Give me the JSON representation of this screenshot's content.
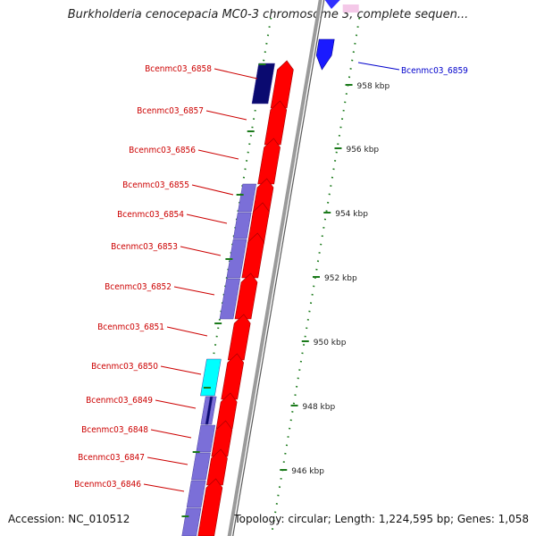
{
  "title": "Burkholderia cenocepacia MC0-3 chromosome 3, complete sequen...",
  "footer": {
    "accession": "Accession: NC_010512",
    "summary": "Topology: circular; Length: 1,224,595 bp; Genes: 1,058"
  },
  "colors": {
    "cds_red": "#ff0000",
    "blue_feature": "#1a1aff",
    "violet_feature": "#7b6fd8",
    "navy_feature": "#0a0a70",
    "cyan_feature": "#00ffff",
    "tick_green": "#1b7a1b",
    "label_red": "#cc0000",
    "label_blue": "#0000cc",
    "backbone": "#9a9a9a"
  },
  "scale": {
    "ticks": [
      {
        "label": "958 kbp"
      },
      {
        "label": "956 kbp"
      },
      {
        "label": "954 kbp"
      },
      {
        "label": "952 kbp"
      },
      {
        "label": "950 kbp"
      },
      {
        "label": "948 kbp"
      },
      {
        "label": "946 kbp"
      }
    ]
  },
  "genes": [
    {
      "label": "Bcenmc03_6859",
      "strand": "reverse"
    },
    {
      "label": "Bcenmc03_6858",
      "strand": "forward"
    },
    {
      "label": "Bcenmc03_6857",
      "strand": "forward"
    },
    {
      "label": "Bcenmc03_6856",
      "strand": "forward"
    },
    {
      "label": "Bcenmc03_6855",
      "strand": "forward"
    },
    {
      "label": "Bcenmc03_6854",
      "strand": "forward"
    },
    {
      "label": "Bcenmc03_6853",
      "strand": "forward"
    },
    {
      "label": "Bcenmc03_6852",
      "strand": "forward"
    },
    {
      "label": "Bcenmc03_6851",
      "strand": "forward"
    },
    {
      "label": "Bcenmc03_6850",
      "strand": "forward"
    },
    {
      "label": "Bcenmc03_6849",
      "strand": "forward"
    },
    {
      "label": "Bcenmc03_6848",
      "strand": "forward"
    },
    {
      "label": "Bcenmc03_6847",
      "strand": "forward"
    },
    {
      "label": "Bcenmc03_6846",
      "strand": "forward"
    }
  ]
}
